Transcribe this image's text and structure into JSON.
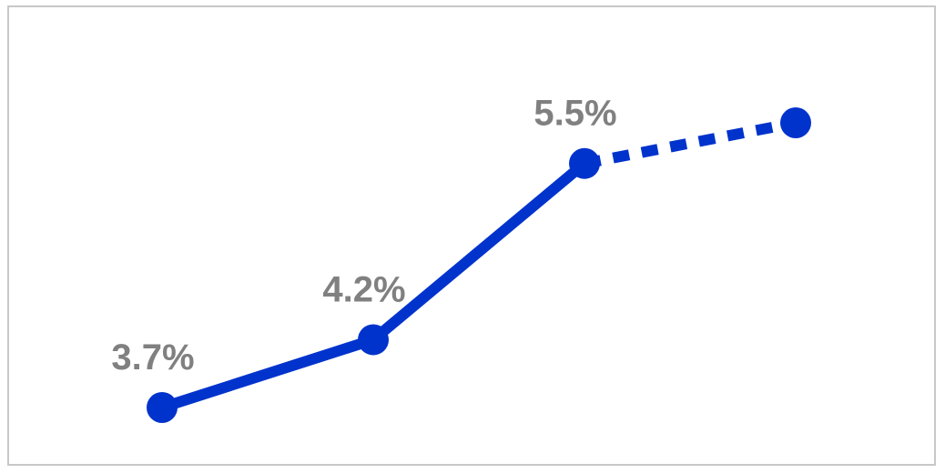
{
  "chart_data": {
    "type": "line",
    "title": "",
    "xlabel": "",
    "ylabel": "",
    "ylim": [
      3.0,
      6.0
    ],
    "grid": false,
    "legend": "none",
    "points": [
      {
        "value": 3.7,
        "label": "3.7%",
        "style": "solid"
      },
      {
        "value": 4.2,
        "label": "4.2%",
        "style": "solid"
      },
      {
        "value": 5.5,
        "label": "5.5%",
        "style": "solid"
      },
      {
        "value": 5.8,
        "label": "",
        "style": "dashed"
      }
    ]
  },
  "colors": {
    "line": "#0033cc",
    "label": "#808080",
    "frame": "#c8c8c8"
  }
}
